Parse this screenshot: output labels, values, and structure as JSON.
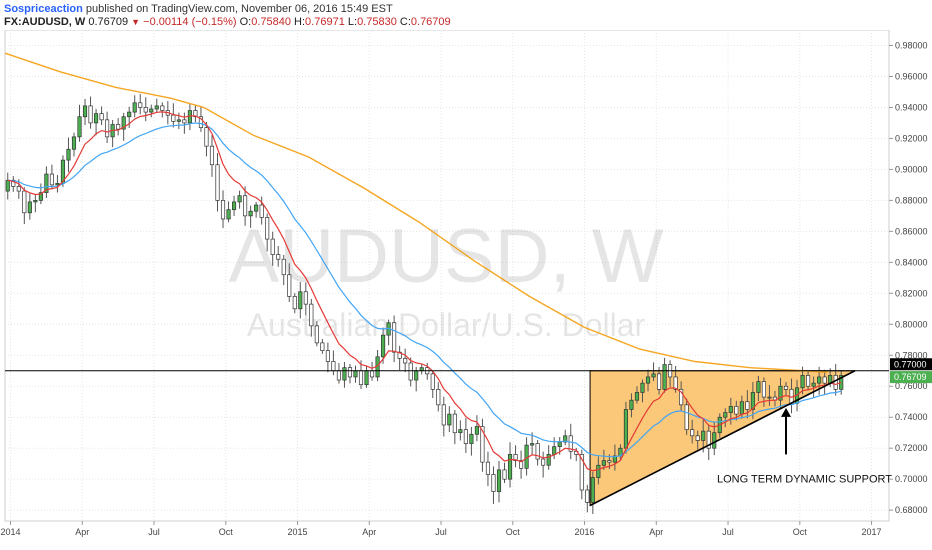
{
  "header": {
    "author": "Sospriceaction",
    "published": " published on TradingView.com, November 06, 2016 15:49 EST",
    "symbol": "FX:AUDUSD, W",
    "last": "0.76709",
    "arrow": "▼",
    "change": "−0.00114 (−0.15%)",
    "o_label": "O:",
    "o": "0.75840",
    "h_label": "H:",
    "h": "0.76971",
    "l_label": "L:",
    "l": "0.75830",
    "c_label": "C:",
    "c": "0.76709"
  },
  "colors": {
    "up_body": "#4caf50",
    "down_body": "#ffffff",
    "wick": "#555555",
    "ema_fast": "#e53935",
    "ema_mid": "#42a5f5",
    "ema_slow": "#f5a623",
    "triangle_fill": "#fbc779",
    "last_price": "#4caf50",
    "level_tag": "#000000"
  },
  "chart_data": {
    "type": "candlestick",
    "watermark_symbol": "AUDUSD, W",
    "watermark_desc": "Australian Dollar/U.S. Dollar",
    "ylim": [
      0.673,
      0.99
    ],
    "yticks": [
      0.68,
      0.7,
      0.72,
      0.74,
      0.76,
      0.78,
      0.8,
      0.82,
      0.84,
      0.86,
      0.88,
      0.9,
      0.92,
      0.94,
      0.96,
      0.98
    ],
    "ytick_labels": [
      "0.68000",
      "0.70000",
      "0.72000",
      "0.74000",
      "0.76000",
      "0.78000",
      "0.80000",
      "0.82000",
      "0.84000",
      "0.86000",
      "0.88000",
      "0.90000",
      "0.92000",
      "0.94000",
      "0.96000",
      "0.98000"
    ],
    "xlim": [
      0,
      154
    ],
    "xticks": [
      {
        "x": 1,
        "label": "2014"
      },
      {
        "x": 14,
        "label": "Apr"
      },
      {
        "x": 27,
        "label": "Jul"
      },
      {
        "x": 40,
        "label": "Oct"
      },
      {
        "x": 53,
        "label": "2015"
      },
      {
        "x": 66,
        "label": "Apr"
      },
      {
        "x": 79,
        "label": "Jul"
      },
      {
        "x": 92,
        "label": "Oct"
      },
      {
        "x": 105,
        "label": "2016"
      },
      {
        "x": 118,
        "label": "Apr"
      },
      {
        "x": 131,
        "label": "Jul"
      },
      {
        "x": 144,
        "label": "Oct"
      },
      {
        "x": 157,
        "label": "2017"
      }
    ],
    "closes": [
      0.893,
      0.889,
      0.886,
      0.872,
      0.879,
      0.88,
      0.885,
      0.897,
      0.89,
      0.891,
      0.906,
      0.913,
      0.921,
      0.934,
      0.941,
      0.93,
      0.936,
      0.932,
      0.921,
      0.929,
      0.926,
      0.934,
      0.937,
      0.943,
      0.94,
      0.937,
      0.939,
      0.941,
      0.938,
      0.935,
      0.931,
      0.932,
      0.93,
      0.938,
      0.934,
      0.927,
      0.915,
      0.903,
      0.88,
      0.868,
      0.874,
      0.879,
      0.883,
      0.87,
      0.873,
      0.877,
      0.869,
      0.855,
      0.845,
      0.842,
      0.832,
      0.818,
      0.81,
      0.821,
      0.813,
      0.799,
      0.788,
      0.783,
      0.776,
      0.77,
      0.764,
      0.772,
      0.766,
      0.77,
      0.761,
      0.77,
      0.766,
      0.779,
      0.793,
      0.801,
      0.782,
      0.778,
      0.775,
      0.764,
      0.77,
      0.772,
      0.768,
      0.758,
      0.748,
      0.735,
      0.742,
      0.73,
      0.732,
      0.723,
      0.729,
      0.734,
      0.711,
      0.703,
      0.692,
      0.706,
      0.7,
      0.716,
      0.712,
      0.707,
      0.722,
      0.723,
      0.713,
      0.709,
      0.716,
      0.721,
      0.724,
      0.728,
      0.718,
      0.716,
      0.693,
      0.685,
      0.701,
      0.709,
      0.712,
      0.711,
      0.715,
      0.72,
      0.745,
      0.751,
      0.756,
      0.762,
      0.766,
      0.768,
      0.758,
      0.774,
      0.766,
      0.758,
      0.748,
      0.732,
      0.728,
      0.725,
      0.731,
      0.72,
      0.73,
      0.74,
      0.743,
      0.747,
      0.742,
      0.75,
      0.745,
      0.756,
      0.763,
      0.753,
      0.753,
      0.751,
      0.76,
      0.758,
      0.749,
      0.759,
      0.767,
      0.76,
      0.762,
      0.766,
      0.762,
      0.767,
      0.758,
      0.767
    ],
    "open_first": 0.886,
    "series": [
      {
        "id": "ema_fast",
        "period": 8
      },
      {
        "id": "ema_mid",
        "period": 21
      },
      {
        "id": "ema_slow_ma",
        "values_at": [
          {
            "x": 0,
            "y": 0.975
          },
          {
            "x": 10,
            "y": 0.963
          },
          {
            "x": 20,
            "y": 0.953
          },
          {
            "x": 30,
            "y": 0.946
          },
          {
            "x": 36,
            "y": 0.94
          },
          {
            "x": 45,
            "y": 0.922
          },
          {
            "x": 55,
            "y": 0.908
          },
          {
            "x": 65,
            "y": 0.888
          },
          {
            "x": 75,
            "y": 0.866
          },
          {
            "x": 85,
            "y": 0.841
          },
          {
            "x": 95,
            "y": 0.818
          },
          {
            "x": 105,
            "y": 0.798
          },
          {
            "x": 115,
            "y": 0.784
          },
          {
            "x": 125,
            "y": 0.776
          },
          {
            "x": 135,
            "y": 0.772
          },
          {
            "x": 145,
            "y": 0.77
          },
          {
            "x": 149,
            "y": 0.769
          }
        ]
      }
    ],
    "horizontal_level": 0.77,
    "level_label": "0.77000",
    "last_price_label": "0.76709",
    "triangle": {
      "points": [
        {
          "x": 106,
          "y": 0.77
        },
        {
          "x": 154,
          "y": 0.77
        },
        {
          "x": 106,
          "y": 0.683
        }
      ]
    },
    "support_line": [
      {
        "x": 106,
        "y": 0.683
      },
      {
        "x": 154,
        "y": 0.77
      }
    ],
    "annotation": {
      "text": "LONG TERM DYNAMIC SUPPORT",
      "arrow_from": {
        "x": 141.5,
        "y": 0.716
      },
      "arrow_to": {
        "x": 141.5,
        "y": 0.746
      },
      "text_at": {
        "x": 129,
        "y": 0.698
      }
    }
  }
}
